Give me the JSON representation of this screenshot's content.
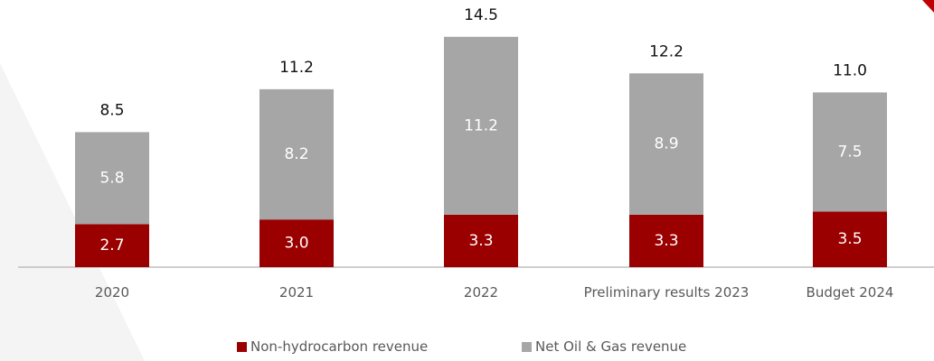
{
  "chart_data": {
    "type": "stacked_bar",
    "categories": [
      "2020",
      "2021",
      "2022",
      "Preliminary results 2023",
      "Budget 2024"
    ],
    "series": [
      {
        "name": "Non-hydrocarbon revenue",
        "color": "#9b0000",
        "values": [
          2.7,
          3.0,
          3.3,
          3.3,
          3.5
        ],
        "value_labels": [
          "2.7",
          "3.0",
          "3.3",
          "3.3",
          "3.5"
        ]
      },
      {
        "name": "Net Oil & Gas revenue",
        "color": "#a6a6a6",
        "values": [
          5.8,
          8.2,
          11.2,
          8.9,
          7.5
        ],
        "value_labels": [
          "5.8",
          "8.2",
          "11.2",
          "8.9",
          "7.5"
        ]
      }
    ],
    "total_labels": [
      "8.5",
      "11.2",
      "14.5",
      "12.2",
      "11.0"
    ]
  }
}
